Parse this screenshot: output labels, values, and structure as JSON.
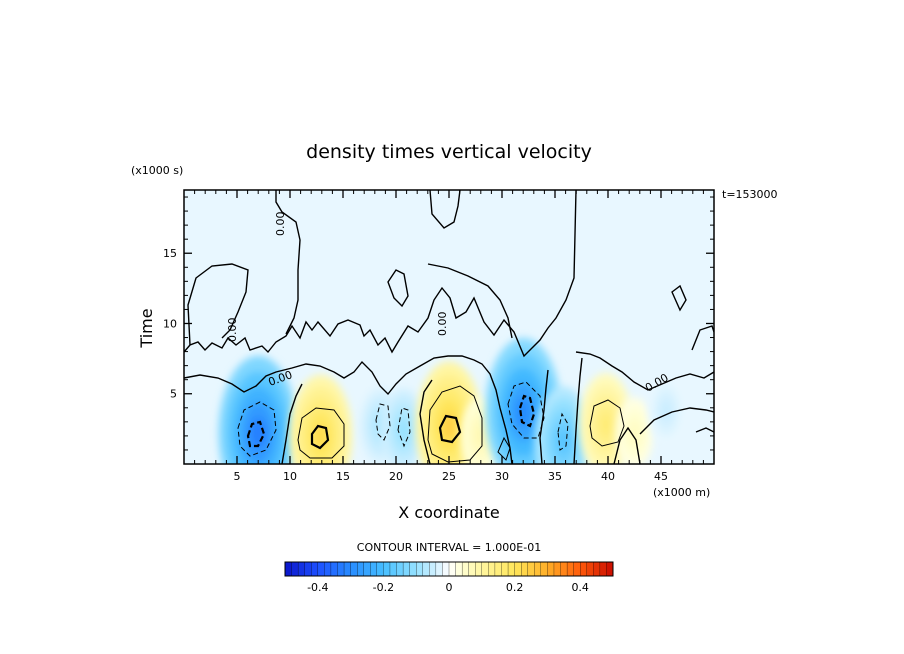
{
  "chart_data": {
    "type": "heatmap",
    "title": "density times vertical velocity",
    "xlabel": "X coordinate",
    "ylabel": "Time",
    "x_unit": "(x1000 m)",
    "y_unit": "(x1000 s)",
    "time_stamp": "t=153000",
    "xlim": [
      0,
      50
    ],
    "ylim": [
      0,
      19.5
    ],
    "x_ticks": [
      5,
      10,
      15,
      20,
      25,
      30,
      35,
      40,
      45
    ],
    "y_ticks": [
      5,
      10,
      15
    ],
    "x_tick_labels": [
      "5",
      "10",
      "15",
      "20",
      "25",
      "30",
      "35",
      "40",
      "45"
    ],
    "y_tick_labels": [
      "5",
      "10",
      "15"
    ],
    "contour_interval_text": "CONTOUR INTERVAL = 1.000E-01",
    "contour_labels": [
      "0.00",
      "0.00",
      "0.00",
      "0.00",
      "0.00"
    ],
    "colorbar": {
      "min": -0.5,
      "max": 0.5,
      "tick_values": [
        -0.4,
        -0.2,
        0,
        0.2,
        0.4
      ],
      "tick_labels": [
        "-0.4",
        "-0.2",
        "0",
        "0.2",
        "0.4"
      ]
    },
    "blobs": [
      {
        "x": 7.0,
        "y": 2.2,
        "value": -0.32
      },
      {
        "x": 12.9,
        "y": 2.0,
        "value": 0.22
      },
      {
        "x": 18.5,
        "y": 2.7,
        "value": -0.08
      },
      {
        "x": 20.7,
        "y": 2.4,
        "value": -0.1
      },
      {
        "x": 25.0,
        "y": 2.7,
        "value": 0.24
      },
      {
        "x": 28.0,
        "y": 2.0,
        "value": 0.08
      },
      {
        "x": 32.0,
        "y": 3.7,
        "value": -0.3
      },
      {
        "x": 35.8,
        "y": 1.6,
        "value": -0.18
      },
      {
        "x": 39.8,
        "y": 2.8,
        "value": 0.16
      },
      {
        "x": 42.5,
        "y": 2.2,
        "value": 0.06
      },
      {
        "x": 45.5,
        "y": 3.8,
        "value": -0.05
      }
    ],
    "grid": false,
    "colors": {
      "background_field": "#e8f7ff",
      "negative_strong": "#1a3cff",
      "positive_strong": "#ff1a00",
      "contour": "#000000"
    }
  }
}
